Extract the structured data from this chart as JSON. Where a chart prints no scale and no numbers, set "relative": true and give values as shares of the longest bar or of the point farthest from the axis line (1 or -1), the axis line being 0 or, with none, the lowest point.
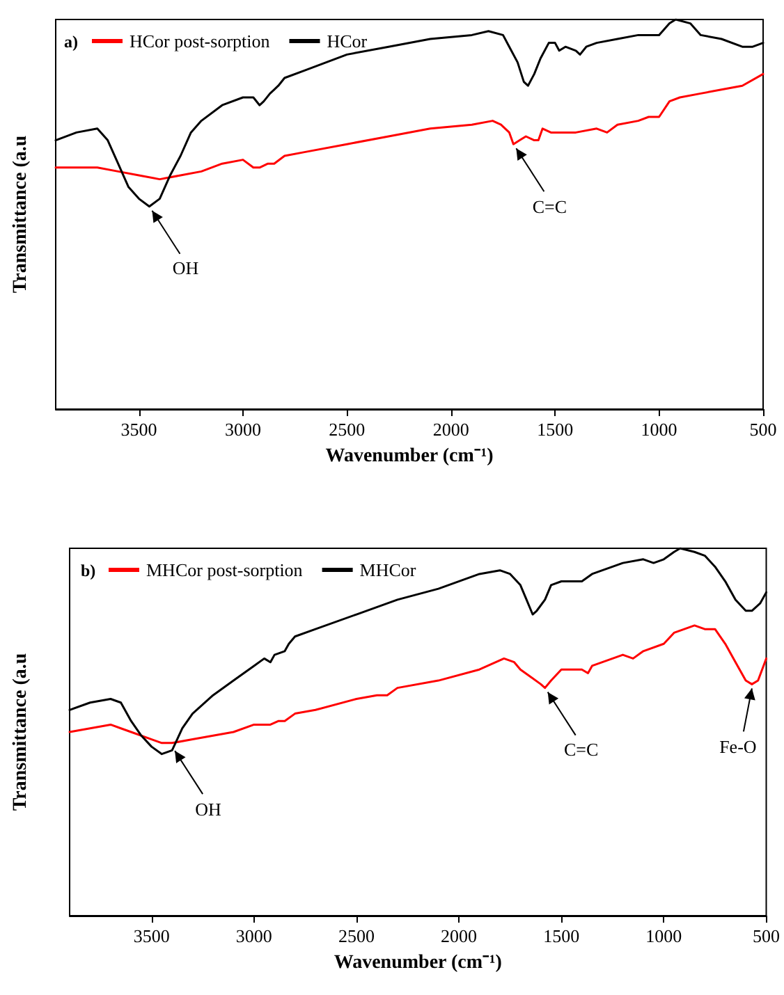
{
  "chart_data": [
    {
      "type": "line",
      "title": "a)",
      "xlabel": "Wavenumber (cm⁻¹)",
      "ylabel": "Transmittance (a.u",
      "relative": true,
      "legend": "top left",
      "grid": false,
      "marker": "none",
      "line_style": "solid",
      "xlim": [
        3900,
        500
      ],
      "xticks": [
        3500,
        3000,
        2500,
        2000,
        1500,
        1000,
        500
      ],
      "x": [
        3900,
        3800,
        3700,
        3650,
        3600,
        3550,
        3500,
        3450,
        3400,
        3350,
        3300,
        3250,
        3200,
        3100,
        3000,
        2950,
        2920,
        2900,
        2870,
        2850,
        2830,
        2800,
        2700,
        2500,
        2300,
        2100,
        1900,
        1820,
        1750,
        1720,
        1680,
        1650,
        1630,
        1600,
        1570,
        1530,
        1500,
        1480,
        1450,
        1400,
        1380,
        1350,
        1300,
        1200,
        1100,
        1050,
        1000,
        950,
        920,
        850,
        800,
        700,
        600,
        550,
        500
      ],
      "series": [
        {
          "name": "HCor post-sorption",
          "color": "#ff0000",
          "x": [
            3900,
            3800,
            3700,
            3600,
            3500,
            3400,
            3300,
            3200,
            3100,
            3000,
            2950,
            2920,
            2880,
            2850,
            2800,
            2700,
            2500,
            2300,
            2100,
            1900,
            1800,
            1760,
            1720,
            1700,
            1670,
            1640,
            1600,
            1580,
            1560,
            1520,
            1500,
            1450,
            1400,
            1300,
            1250,
            1200,
            1100,
            1050,
            1000,
            950,
            900,
            800,
            700,
            600,
            500
          ],
          "values": [
            0.62,
            0.62,
            0.62,
            0.61,
            0.6,
            0.59,
            0.6,
            0.61,
            0.63,
            0.64,
            0.62,
            0.62,
            0.63,
            0.63,
            0.65,
            0.66,
            0.68,
            0.7,
            0.72,
            0.73,
            0.74,
            0.73,
            0.71,
            0.68,
            0.69,
            0.7,
            0.69,
            0.69,
            0.72,
            0.71,
            0.71,
            0.71,
            0.71,
            0.72,
            0.71,
            0.73,
            0.74,
            0.75,
            0.75,
            0.79,
            0.8,
            0.81,
            0.82,
            0.83,
            0.86
          ]
        },
        {
          "name": "HCor",
          "color": "#000000",
          "values": [
            0.69,
            0.71,
            0.72,
            0.69,
            0.63,
            0.57,
            0.54,
            0.52,
            0.54,
            0.6,
            0.65,
            0.71,
            0.74,
            0.78,
            0.8,
            0.8,
            0.78,
            0.79,
            0.81,
            0.82,
            0.83,
            0.85,
            0.87,
            0.91,
            0.93,
            0.95,
            0.96,
            0.97,
            0.96,
            0.93,
            0.89,
            0.84,
            0.83,
            0.86,
            0.9,
            0.94,
            0.94,
            0.92,
            0.93,
            0.92,
            0.91,
            0.93,
            0.94,
            0.95,
            0.96,
            0.96,
            0.96,
            0.99,
            1,
            0.99,
            0.96,
            0.95,
            0.93,
            0.93,
            0.94
          ]
        }
      ],
      "annotations": [
        {
          "text": "OH",
          "x": 3450,
          "y": 0.52
        },
        {
          "text": "C=C",
          "x": 1700,
          "y": 0.68
        }
      ]
    },
    {
      "type": "line",
      "title": "b)",
      "xlabel": "Wavenumber (cm⁻¹)",
      "ylabel": "Transmittance (a.u",
      "relative": true,
      "legend": "top left",
      "grid": false,
      "marker": "none",
      "line_style": "solid",
      "xlim": [
        3900,
        500
      ],
      "xticks": [
        3500,
        3000,
        2500,
        2000,
        1500,
        1000,
        500
      ],
      "x": [
        3900,
        3800,
        3700,
        3650,
        3600,
        3550,
        3500,
        3450,
        3400,
        3350,
        3300,
        3200,
        3100,
        3000,
        2950,
        2920,
        2900,
        2850,
        2830,
        2800,
        2700,
        2500,
        2300,
        2100,
        1900,
        1800,
        1750,
        1700,
        1670,
        1640,
        1620,
        1580,
        1550,
        1500,
        1450,
        1400,
        1350,
        1300,
        1200,
        1100,
        1050,
        1000,
        950,
        920,
        850,
        800,
        750,
        700,
        650,
        600,
        570,
        530,
        500
      ],
      "series": [
        {
          "name": "MHCor post-sorption",
          "color": "#ff0000",
          "x": [
            3900,
            3800,
            3700,
            3650,
            3600,
            3500,
            3450,
            3400,
            3300,
            3200,
            3100,
            3000,
            2950,
            2920,
            2880,
            2850,
            2800,
            2700,
            2500,
            2400,
            2350,
            2300,
            2100,
            1900,
            1780,
            1730,
            1700,
            1650,
            1600,
            1580,
            1550,
            1500,
            1450,
            1400,
            1370,
            1350,
            1300,
            1200,
            1150,
            1100,
            1000,
            950,
            900,
            850,
            800,
            750,
            700,
            650,
            600,
            570,
            540,
            500
          ],
          "values": [
            0.5,
            0.51,
            0.52,
            0.51,
            0.5,
            0.48,
            0.47,
            0.47,
            0.48,
            0.49,
            0.5,
            0.52,
            0.52,
            0.52,
            0.53,
            0.53,
            0.55,
            0.56,
            0.59,
            0.6,
            0.6,
            0.62,
            0.64,
            0.67,
            0.7,
            0.69,
            0.67,
            0.65,
            0.63,
            0.62,
            0.64,
            0.67,
            0.67,
            0.67,
            0.66,
            0.68,
            0.69,
            0.71,
            0.7,
            0.72,
            0.74,
            0.77,
            0.78,
            0.79,
            0.78,
            0.78,
            0.74,
            0.69,
            0.64,
            0.63,
            0.64,
            0.7
          ]
        },
        {
          "name": "MHCor",
          "color": "#000000",
          "values": [
            0.56,
            0.58,
            0.59,
            0.58,
            0.53,
            0.49,
            0.46,
            0.44,
            0.45,
            0.51,
            0.55,
            0.6,
            0.64,
            0.68,
            0.7,
            0.69,
            0.71,
            0.72,
            0.74,
            0.76,
            0.78,
            0.82,
            0.86,
            0.89,
            0.93,
            0.94,
            0.93,
            0.9,
            0.86,
            0.82,
            0.83,
            0.86,
            0.9,
            0.91,
            0.91,
            0.91,
            0.93,
            0.94,
            0.96,
            0.97,
            0.96,
            0.97,
            0.99,
            1,
            0.99,
            0.98,
            0.95,
            0.91,
            0.86,
            0.83,
            0.83,
            0.85,
            0.88
          ]
        }
      ],
      "annotations": [
        {
          "text": "OH",
          "x": 3400,
          "y": 0.46
        },
        {
          "text": "C=C",
          "x": 1580,
          "y": 0.62
        },
        {
          "text": "Fe-O",
          "x": 570,
          "y": 0.63
        }
      ]
    }
  ]
}
